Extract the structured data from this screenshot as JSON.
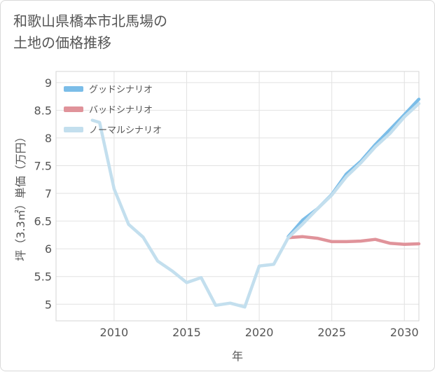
{
  "title_line1": "和歌山県橋本市北馬場の",
  "title_line2": "土地の価格推移",
  "chart_data": {
    "type": "line",
    "title": "和歌山県橋本市北馬場の土地の価格推移",
    "xlabel": "年",
    "ylabel": "坪（3.3㎡）単価（万円）",
    "xlim": [
      2006,
      2031
    ],
    "ylim": [
      4.7,
      9.2
    ],
    "xticks": [
      2010,
      2015,
      2020,
      2025,
      2030
    ],
    "yticks": [
      5,
      5.5,
      6,
      6.5,
      7,
      7.5,
      8,
      8.5,
      9
    ],
    "grid": true,
    "legend_position": "top-left",
    "series": [
      {
        "name": "グッドシナリオ",
        "color": "#7bbde8",
        "x": [
          2022,
          2023,
          2024,
          2025,
          2026,
          2027,
          2028,
          2029,
          2030,
          2031
        ],
        "values": [
          6.22,
          6.52,
          6.72,
          6.98,
          7.35,
          7.58,
          7.88,
          8.15,
          8.42,
          8.7
        ]
      },
      {
        "name": "バッドシナリオ",
        "color": "#e0939a",
        "x": [
          2022,
          2023,
          2024,
          2025,
          2026,
          2027,
          2028,
          2029,
          2030,
          2031
        ],
        "values": [
          6.2,
          6.22,
          6.19,
          6.13,
          6.13,
          6.14,
          6.17,
          6.1,
          6.08,
          6.09
        ]
      },
      {
        "name": "ノーマルシナリオ",
        "color": "#c3dfee",
        "x": [
          2008.5,
          2009,
          2010,
          2011,
          2012,
          2013,
          2014,
          2015,
          2016,
          2017,
          2018,
          2019,
          2020,
          2021,
          2022,
          2023,
          2024,
          2025,
          2026,
          2027,
          2028,
          2029,
          2030,
          2031
        ],
        "values": [
          8.32,
          8.28,
          7.08,
          6.44,
          6.21,
          5.78,
          5.6,
          5.39,
          5.48,
          4.98,
          5.02,
          4.95,
          5.69,
          5.72,
          6.2,
          6.45,
          6.72,
          6.97,
          7.3,
          7.55,
          7.84,
          8.08,
          8.38,
          8.62
        ]
      }
    ]
  }
}
